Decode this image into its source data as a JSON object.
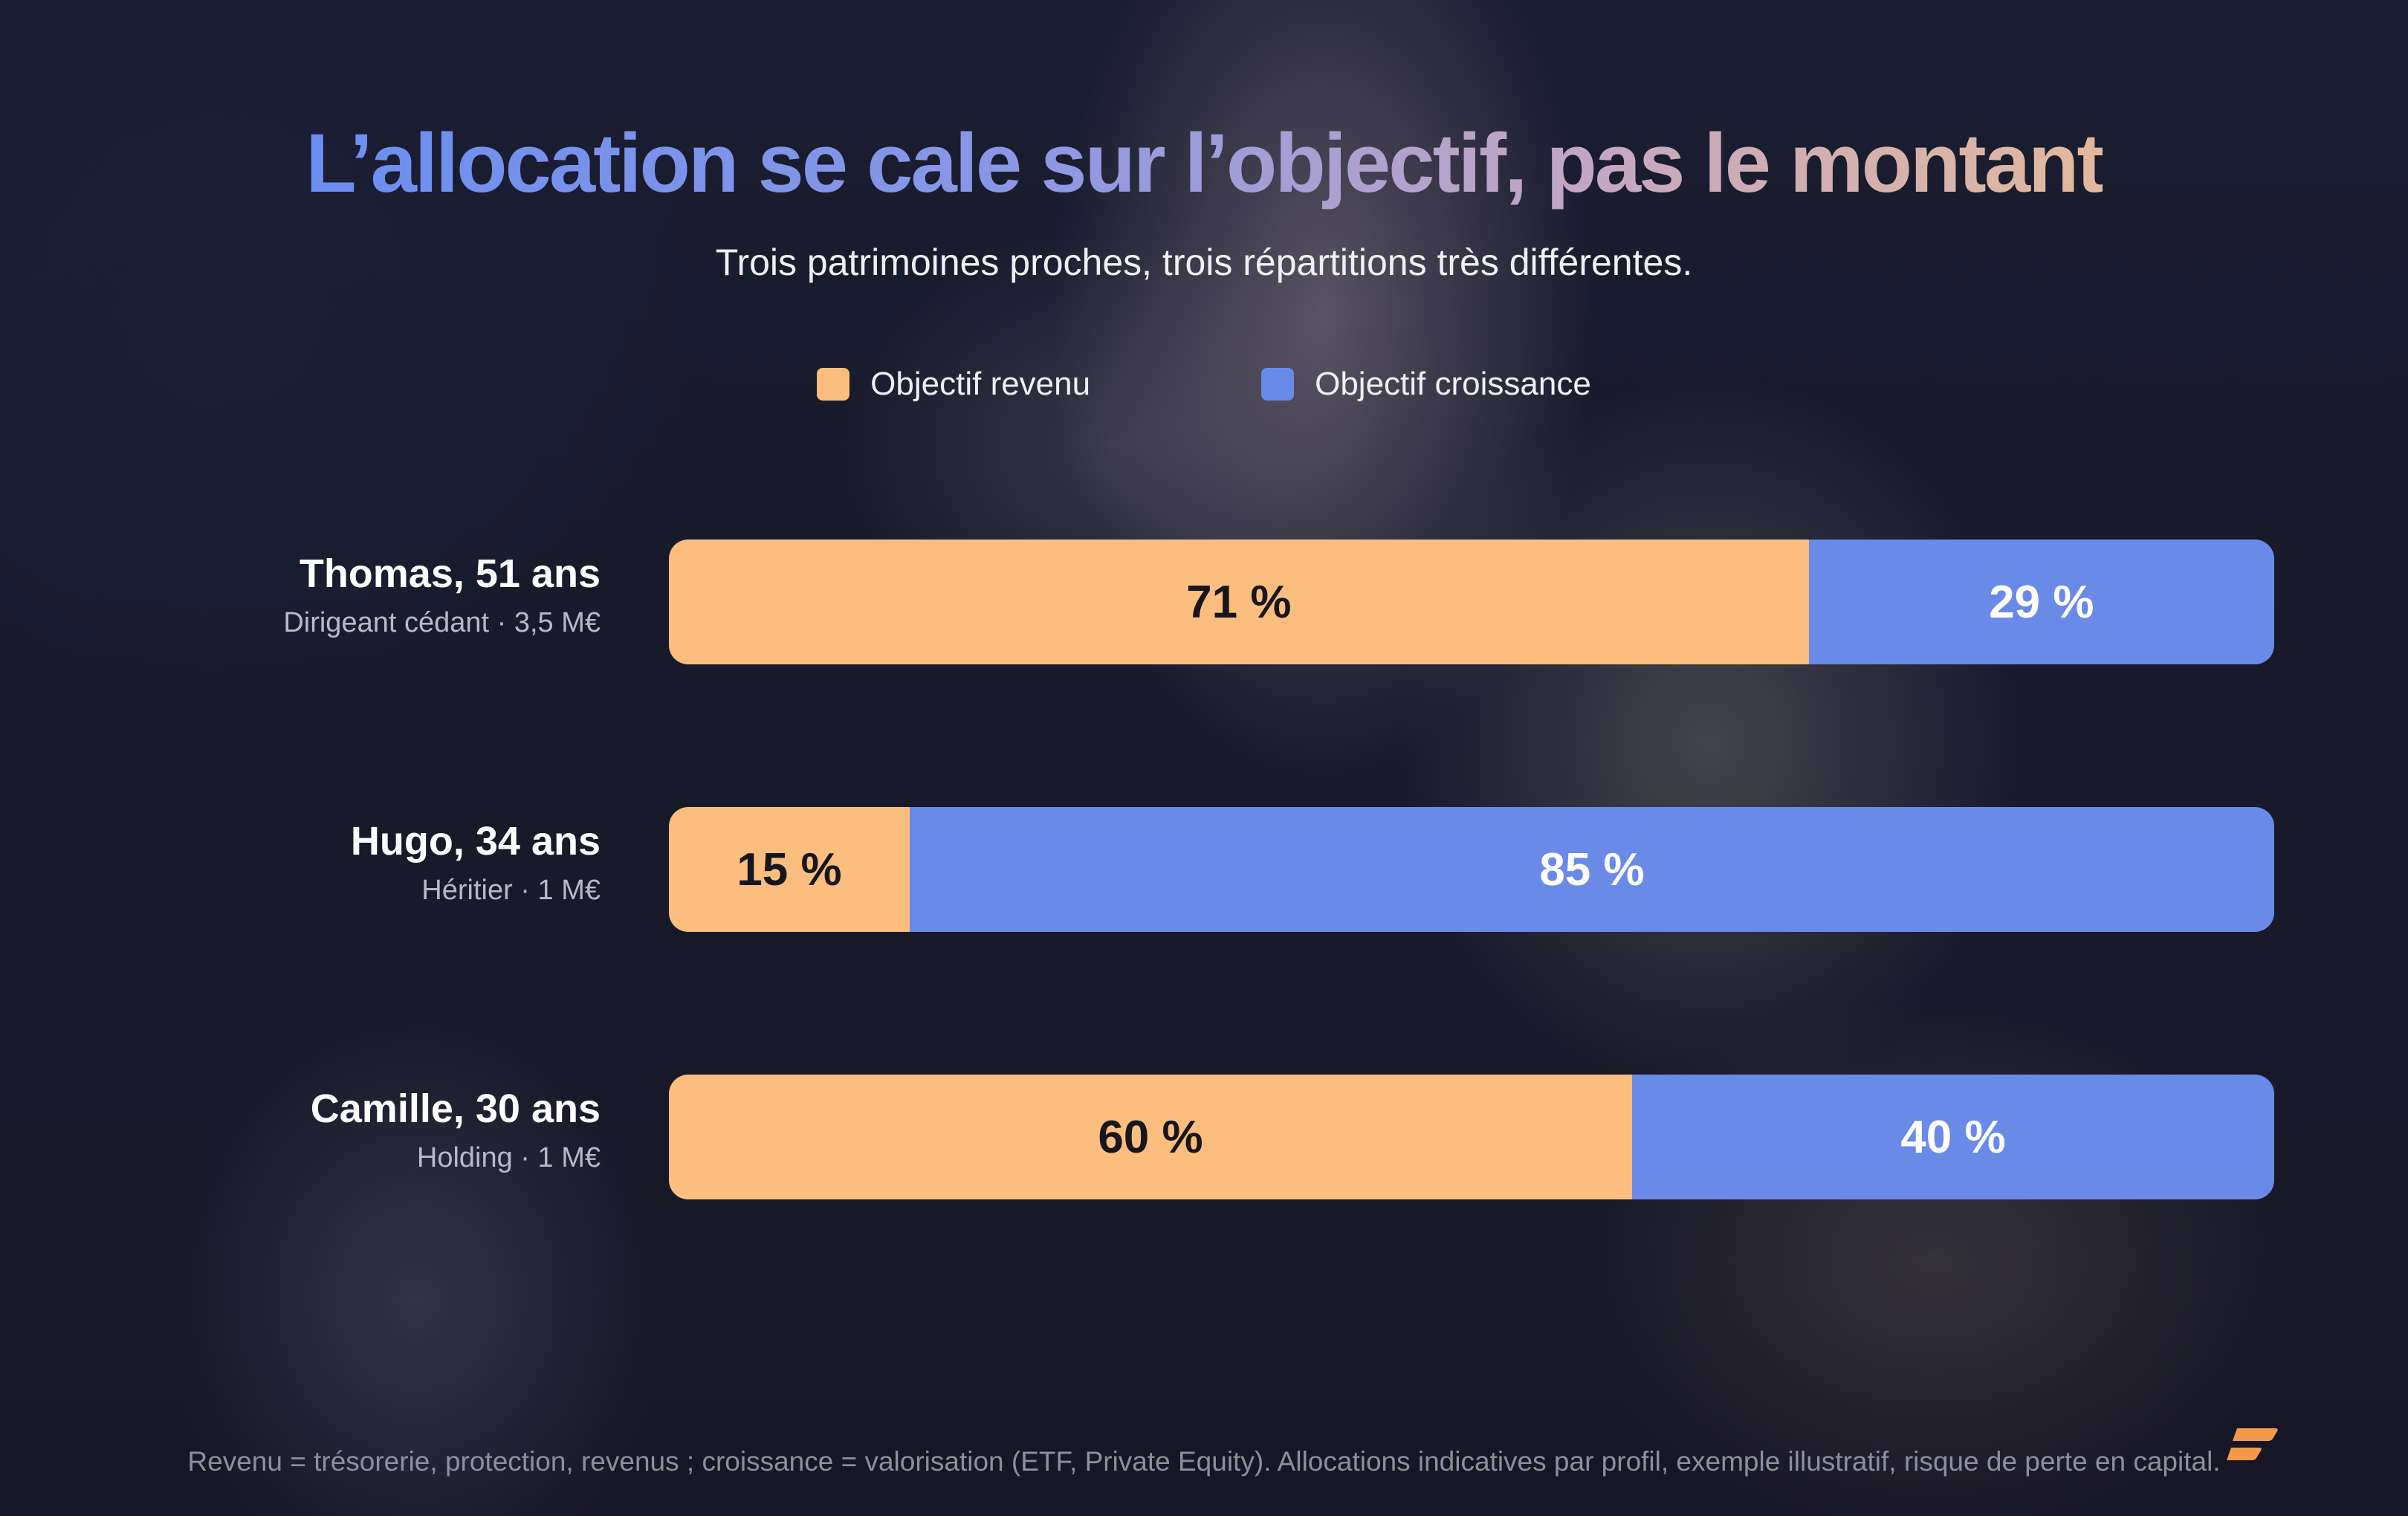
{
  "title": "L’allocation se cale sur l’objectif, pas le montant",
  "subtitle": "Trois patrimoines proches, trois répartitions très différentes.",
  "legend": [
    {
      "label": "Objectif revenu",
      "color": "#fbbe7e"
    },
    {
      "label": "Objectif croissance",
      "color": "#6a8ae8"
    }
  ],
  "chart_data": {
    "type": "bar",
    "orientation": "horizontal",
    "stacked": true,
    "xlim": [
      0,
      100
    ],
    "categories": [
      "Thomas, 51 ans",
      "Hugo, 34 ans",
      "Camille, 30 ans"
    ],
    "category_descriptions": [
      "Dirigeant cédant · 3,5 M€",
      "Héritier · 1 M€",
      "Holding · 1 M€"
    ],
    "series": [
      {
        "name": "Objectif revenu",
        "values": [
          71,
          15,
          60
        ],
        "labels": [
          "71 %",
          "15 %",
          "60 %"
        ],
        "color": "#fbbe7e"
      },
      {
        "name": "Objectif croissance",
        "values": [
          29,
          85,
          40
        ],
        "labels": [
          "29 %",
          "85 %",
          "40 %"
        ],
        "color": "#6a8ae8"
      }
    ],
    "legend_position": "top-center",
    "grid": false
  },
  "footnote": "Revenu = trésorerie, protection, revenus ; croissance = valorisation (ETF, Private Equity). Allocations indicatives par profil, exemple illustratif, risque de perte en capital.",
  "logo": {
    "icon": "brand-logo-icon",
    "color": "#f49a4c"
  }
}
